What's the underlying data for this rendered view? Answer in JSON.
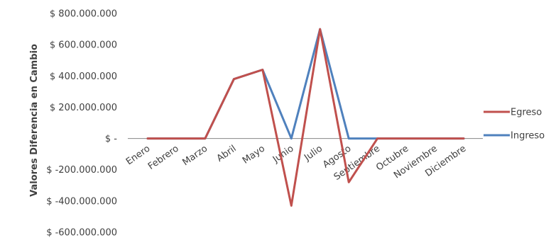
{
  "chart_data": {
    "type": "line",
    "title": "",
    "ylabel": "Valores Diferencia en  Cambio",
    "xlabel": "",
    "categories": [
      "Enero",
      "Febrero",
      "Marzo",
      "Abril",
      "Mayo",
      "Junio",
      "Julio",
      "Agosto",
      "Septiembre",
      "Octubre",
      "Noviembre",
      "Diciembre"
    ],
    "ylim": [
      -600000000,
      800000000
    ],
    "yticks": [
      800000000,
      600000000,
      400000000,
      200000000,
      0,
      -200000000,
      -400000000,
      -600000000
    ],
    "ytick_labels": [
      "$ 800.000.000",
      "$ 600.000.000",
      "$ 400.000.000",
      "$ 200.000.000",
      "$ -",
      "$ -200.000.000",
      "$ -400.000.000",
      "$ -600.000.000"
    ],
    "grid": false,
    "legend_position": "right",
    "series": [
      {
        "name": "Egreso",
        "color": "#c0504d",
        "values": [
          0,
          0,
          0,
          380000000,
          440000000,
          -430000000,
          700000000,
          -280000000,
          0,
          0,
          0,
          0
        ]
      },
      {
        "name": "Ingreso",
        "color": "#4f81bd",
        "values": [
          0,
          0,
          0,
          380000000,
          440000000,
          0,
          700000000,
          0,
          0,
          0,
          0,
          0
        ]
      }
    ]
  }
}
